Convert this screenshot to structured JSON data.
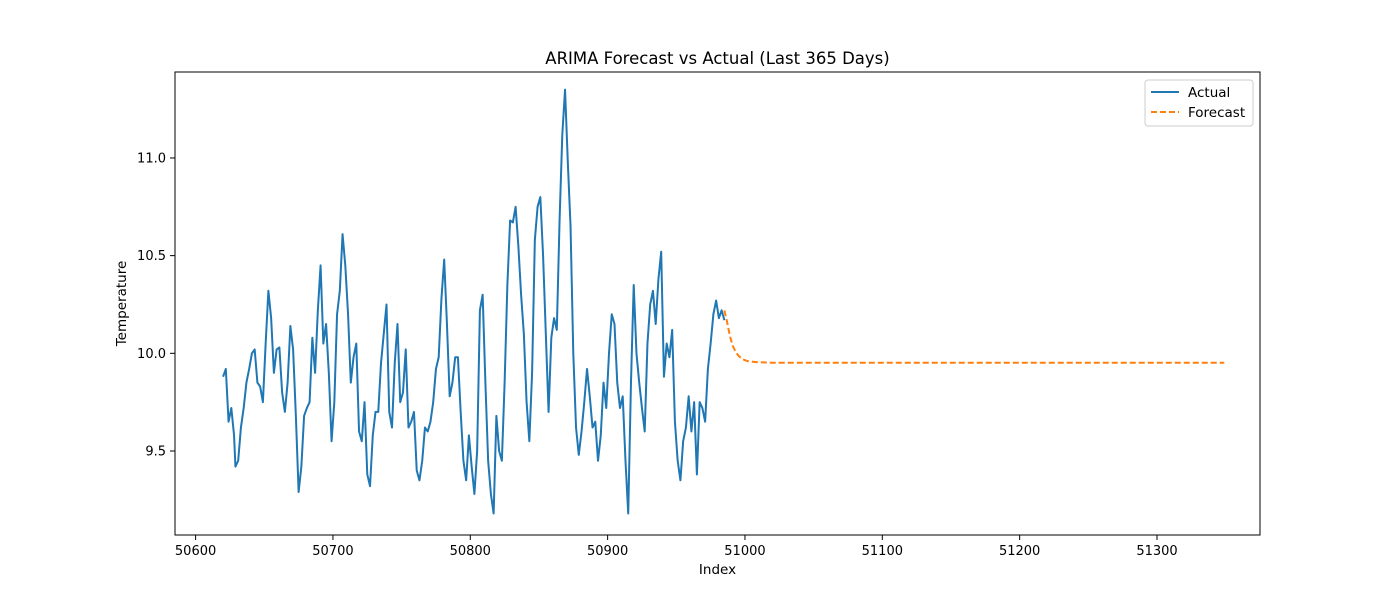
{
  "chart_data": {
    "type": "line",
    "title": "ARIMA Forecast vs Actual (Last 365 Days)",
    "xlabel": "Index",
    "ylabel": "Temperature",
    "xlim": [
      50585,
      51375
    ],
    "ylim": [
      9.07,
      11.44
    ],
    "xticks": [
      50600,
      50700,
      50800,
      50900,
      51000,
      51100,
      51200,
      51300
    ],
    "yticks": [
      9.5,
      10.0,
      10.5,
      11.0
    ],
    "grid": false,
    "legend_position": "upper right",
    "series": [
      {
        "name": "Actual",
        "color": "#1f77b4",
        "style": "solid",
        "points": [
          [
            50620,
            9.88
          ],
          [
            50622,
            9.92
          ],
          [
            50624,
            9.65
          ],
          [
            50626,
            9.72
          ],
          [
            50628,
            9.58
          ],
          [
            50629,
            9.42
          ],
          [
            50631,
            9.45
          ],
          [
            50633,
            9.62
          ],
          [
            50635,
            9.72
          ],
          [
            50637,
            9.85
          ],
          [
            50639,
            9.92
          ],
          [
            50641,
            10.0
          ],
          [
            50643,
            10.02
          ],
          [
            50645,
            9.85
          ],
          [
            50647,
            9.83
          ],
          [
            50649,
            9.75
          ],
          [
            50651,
            10.05
          ],
          [
            50653,
            10.32
          ],
          [
            50655,
            10.18
          ],
          [
            50657,
            9.9
          ],
          [
            50659,
            10.02
          ],
          [
            50661,
            10.03
          ],
          [
            50663,
            9.8
          ],
          [
            50665,
            9.7
          ],
          [
            50667,
            9.85
          ],
          [
            50669,
            10.14
          ],
          [
            50671,
            10.02
          ],
          [
            50673,
            9.68
          ],
          [
            50675,
            9.29
          ],
          [
            50677,
            9.42
          ],
          [
            50679,
            9.68
          ],
          [
            50681,
            9.72
          ],
          [
            50683,
            9.75
          ],
          [
            50685,
            10.08
          ],
          [
            50687,
            9.9
          ],
          [
            50689,
            10.22
          ],
          [
            50691,
            10.45
          ],
          [
            50693,
            10.05
          ],
          [
            50695,
            10.15
          ],
          [
            50697,
            9.9
          ],
          [
            50699,
            9.55
          ],
          [
            50701,
            9.75
          ],
          [
            50703,
            10.2
          ],
          [
            50705,
            10.32
          ],
          [
            50707,
            10.61
          ],
          [
            50709,
            10.45
          ],
          [
            50711,
            10.2
          ],
          [
            50713,
            9.85
          ],
          [
            50715,
            9.98
          ],
          [
            50717,
            10.05
          ],
          [
            50719,
            9.6
          ],
          [
            50721,
            9.55
          ],
          [
            50723,
            9.75
          ],
          [
            50725,
            9.38
          ],
          [
            50727,
            9.32
          ],
          [
            50729,
            9.58
          ],
          [
            50731,
            9.7
          ],
          [
            50733,
            9.7
          ],
          [
            50735,
            9.95
          ],
          [
            50737,
            10.1
          ],
          [
            50739,
            10.25
          ],
          [
            50741,
            9.7
          ],
          [
            50743,
            9.62
          ],
          [
            50745,
            9.95
          ],
          [
            50747,
            10.15
          ],
          [
            50749,
            9.75
          ],
          [
            50751,
            9.8
          ],
          [
            50753,
            10.02
          ],
          [
            50755,
            9.62
          ],
          [
            50757,
            9.65
          ],
          [
            50759,
            9.7
          ],
          [
            50761,
            9.4
          ],
          [
            50763,
            9.35
          ],
          [
            50765,
            9.45
          ],
          [
            50767,
            9.62
          ],
          [
            50769,
            9.6
          ],
          [
            50771,
            9.65
          ],
          [
            50773,
            9.75
          ],
          [
            50775,
            9.92
          ],
          [
            50777,
            9.98
          ],
          [
            50779,
            10.28
          ],
          [
            50781,
            10.48
          ],
          [
            50783,
            10.15
          ],
          [
            50785,
            9.78
          ],
          [
            50787,
            9.85
          ],
          [
            50789,
            9.98
          ],
          [
            50791,
            9.98
          ],
          [
            50793,
            9.7
          ],
          [
            50795,
            9.45
          ],
          [
            50797,
            9.35
          ],
          [
            50799,
            9.58
          ],
          [
            50801,
            9.42
          ],
          [
            50803,
            9.28
          ],
          [
            50805,
            9.5
          ],
          [
            50807,
            10.22
          ],
          [
            50809,
            10.3
          ],
          [
            50811,
            9.85
          ],
          [
            50813,
            9.45
          ],
          [
            50815,
            9.28
          ],
          [
            50817,
            9.18
          ],
          [
            50819,
            9.68
          ],
          [
            50821,
            9.5
          ],
          [
            50823,
            9.45
          ],
          [
            50825,
            9.85
          ],
          [
            50827,
            10.35
          ],
          [
            50829,
            10.68
          ],
          [
            50831,
            10.67
          ],
          [
            50833,
            10.75
          ],
          [
            50835,
            10.55
          ],
          [
            50837,
            10.3
          ],
          [
            50839,
            10.1
          ],
          [
            50841,
            9.75
          ],
          [
            50843,
            9.55
          ],
          [
            50845,
            9.9
          ],
          [
            50847,
            10.58
          ],
          [
            50849,
            10.75
          ],
          [
            50851,
            10.8
          ],
          [
            50853,
            10.5
          ],
          [
            50855,
            10.1
          ],
          [
            50857,
            9.7
          ],
          [
            50859,
            10.08
          ],
          [
            50861,
            10.18
          ],
          [
            50863,
            10.12
          ],
          [
            50865,
            10.68
          ],
          [
            50867,
            11.12
          ],
          [
            50869,
            11.35
          ],
          [
            50871,
            10.98
          ],
          [
            50873,
            10.65
          ],
          [
            50875,
            10.0
          ],
          [
            50877,
            9.62
          ],
          [
            50879,
            9.48
          ],
          [
            50881,
            9.6
          ],
          [
            50883,
            9.75
          ],
          [
            50885,
            9.92
          ],
          [
            50887,
            9.78
          ],
          [
            50889,
            9.62
          ],
          [
            50891,
            9.65
          ],
          [
            50893,
            9.45
          ],
          [
            50895,
            9.58
          ],
          [
            50897,
            9.85
          ],
          [
            50899,
            9.72
          ],
          [
            50901,
            10.0
          ],
          [
            50903,
            10.2
          ],
          [
            50905,
            10.15
          ],
          [
            50907,
            9.85
          ],
          [
            50909,
            9.72
          ],
          [
            50911,
            9.78
          ],
          [
            50913,
            9.45
          ],
          [
            50915,
            9.18
          ],
          [
            50917,
            9.85
          ],
          [
            50919,
            10.35
          ],
          [
            50921,
            10.0
          ],
          [
            50923,
            9.85
          ],
          [
            50925,
            9.72
          ],
          [
            50927,
            9.6
          ],
          [
            50929,
            10.05
          ],
          [
            50931,
            10.25
          ],
          [
            50933,
            10.32
          ],
          [
            50935,
            10.15
          ],
          [
            50937,
            10.38
          ],
          [
            50939,
            10.52
          ],
          [
            50941,
            9.88
          ],
          [
            50943,
            10.05
          ],
          [
            50945,
            9.98
          ],
          [
            50947,
            10.12
          ],
          [
            50949,
            9.65
          ],
          [
            50951,
            9.45
          ],
          [
            50953,
            9.35
          ],
          [
            50955,
            9.55
          ],
          [
            50957,
            9.62
          ],
          [
            50959,
            9.78
          ],
          [
            50961,
            9.6
          ],
          [
            50963,
            9.75
          ],
          [
            50965,
            9.38
          ],
          [
            50967,
            9.75
          ],
          [
            50969,
            9.72
          ],
          [
            50971,
            9.65
          ],
          [
            50973,
            9.92
          ],
          [
            50975,
            10.05
          ],
          [
            50977,
            10.2
          ],
          [
            50979,
            10.27
          ],
          [
            50981,
            10.18
          ],
          [
            50983,
            10.22
          ],
          [
            50985,
            10.17
          ]
        ]
      },
      {
        "name": "Forecast",
        "color": "#ff7f0e",
        "style": "dashed",
        "points": [
          [
            50985,
            10.22
          ],
          [
            50987,
            10.16
          ],
          [
            50989,
            10.09
          ],
          [
            50991,
            10.04
          ],
          [
            50993,
            10.01
          ],
          [
            50995,
            9.99
          ],
          [
            50998,
            9.97
          ],
          [
            51002,
            9.96
          ],
          [
            51008,
            9.955
          ],
          [
            51020,
            9.952
          ],
          [
            51050,
            9.952
          ],
          [
            51100,
            9.952
          ],
          [
            51150,
            9.952
          ],
          [
            51200,
            9.952
          ],
          [
            51250,
            9.952
          ],
          [
            51300,
            9.952
          ],
          [
            51349,
            9.952
          ]
        ]
      }
    ]
  }
}
